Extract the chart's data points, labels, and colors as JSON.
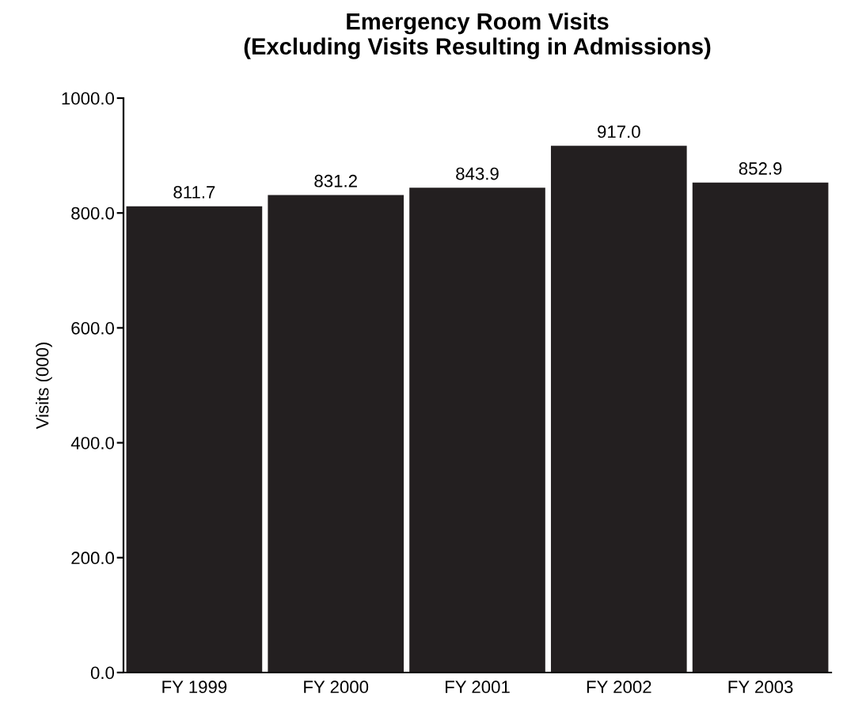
{
  "chart_data": {
    "type": "bar",
    "title": "Emergency Room Visits\n(Excluding Visits Resulting in Admissions)",
    "ylabel": "Visits (000)",
    "categories": [
      "FY 1999",
      "FY 2000",
      "FY 2001",
      "FY 2002",
      "FY 2003"
    ],
    "values": [
      811.7,
      831.2,
      843.9,
      917.0,
      852.9
    ],
    "value_labels": [
      "811.7",
      "831.2",
      "843.9",
      "917.0",
      "852.9"
    ],
    "color": "#231f20",
    "ylim": [
      0,
      1000
    ],
    "yticks": [
      {
        "value": 0,
        "label": "0.0"
      },
      {
        "value": 200,
        "label": "200.0"
      },
      {
        "value": 400,
        "label": "400.0"
      },
      {
        "value": 600,
        "label": "600.0"
      },
      {
        "value": 800,
        "label": "800.0"
      },
      {
        "value": 1000,
        "label": "1000.0"
      }
    ],
    "grid": false,
    "legend": false
  }
}
